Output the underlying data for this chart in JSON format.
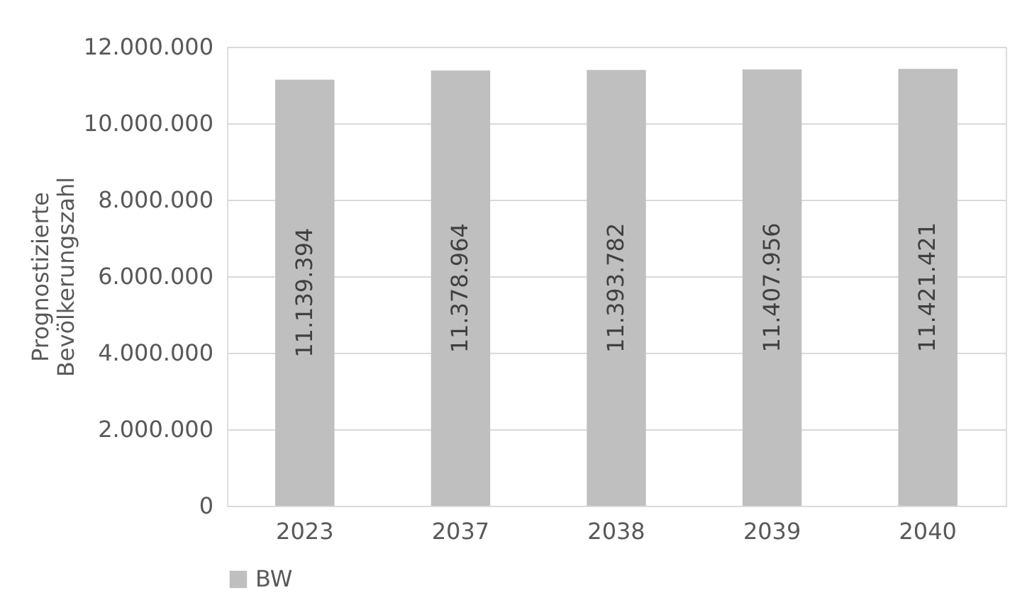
{
  "chart_data": {
    "type": "bar",
    "categories": [
      "2023",
      "2037",
      "2038",
      "2039",
      "2040"
    ],
    "series": [
      {
        "name": "BW",
        "color": "#bfbfbf",
        "values": [
          11139394,
          11378964,
          11393782,
          11407956,
          11421421
        ],
        "value_labels": [
          "11.139.394",
          "11.378.964",
          "11.393.782",
          "11.407.956",
          "11.421.421"
        ]
      }
    ],
    "ylabel": "Prognostizierte Bevölkerungszahl",
    "ylim": [
      0,
      12000000
    ],
    "yticks": [
      0,
      {
        "value": 2000000,
        "label": "2.000.000"
      },
      {
        "value": 4000000,
        "label": "4.000.000"
      },
      {
        "value": 6000000,
        "label": "6.000.000"
      },
      {
        "value": 8000000,
        "label": "8.000.000"
      },
      {
        "value": 10000000,
        "label": "10.000.000"
      },
      {
        "value": 12000000,
        "label": "12.000.000"
      }
    ],
    "grid": "y",
    "legend": "bottom"
  }
}
